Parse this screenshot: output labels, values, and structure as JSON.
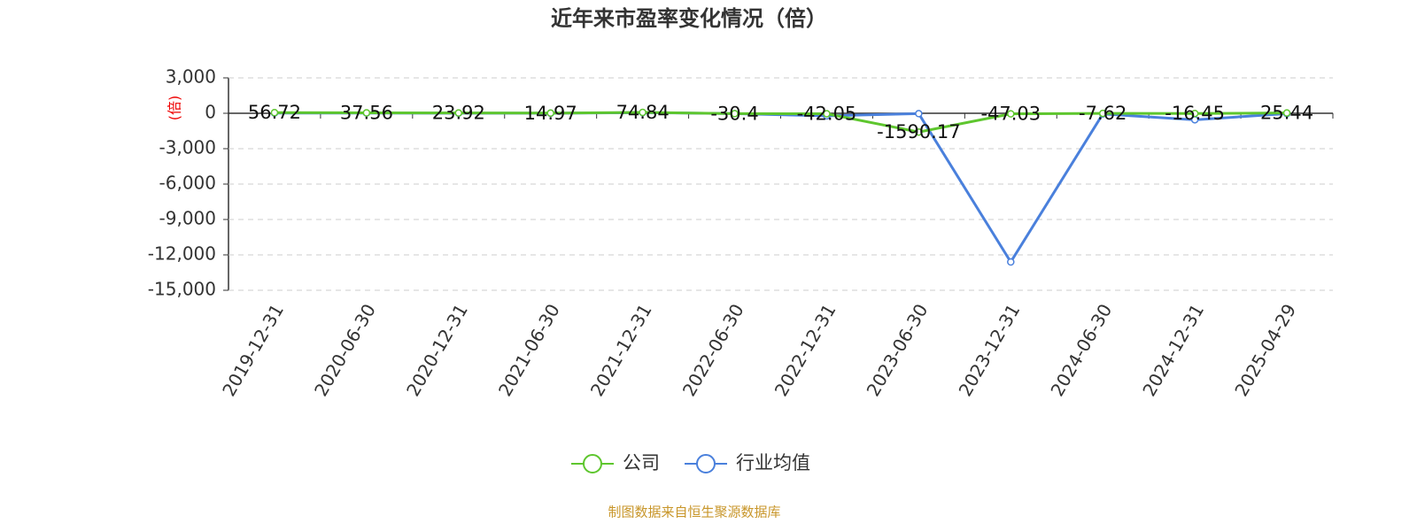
{
  "chart_data": {
    "type": "line",
    "title": "近年来市盈率变化情况（倍）",
    "y_label": "(倍)",
    "source": "制图数据来自恒生聚源数据库",
    "categories": [
      "2019-12-31",
      "2020-06-30",
      "2020-12-31",
      "2021-06-30",
      "2021-12-31",
      "2022-06-30",
      "2022-12-31",
      "2023-06-30",
      "2023-12-31",
      "2024-06-30",
      "2024-12-31",
      "2025-04-29"
    ],
    "series": [
      {
        "name": "公司",
        "color": "#5ec62e",
        "values": [
          56.72,
          37.56,
          23.92,
          14.97,
          74.84,
          -30.4,
          -42.05,
          -1590.17,
          -47.03,
          -7.62,
          -16.45,
          25.44
        ]
      },
      {
        "name": "行业均值",
        "color": "#4a80dc",
        "values": [
          20,
          15,
          10,
          5,
          60,
          -30,
          -220,
          -30,
          -12600,
          -60,
          -550,
          -30
        ]
      }
    ],
    "ylim": [
      -15000,
      3000
    ],
    "yticks": [
      {
        "value": 3000,
        "label": "3,000"
      },
      0,
      {
        "value": -3000,
        "label": "-3,000"
      },
      {
        "value": -6000,
        "label": "-6,000"
      },
      {
        "value": -9000,
        "label": "-9,000"
      },
      {
        "value": -12000,
        "label": "-12,000"
      },
      {
        "value": -15000,
        "label": "-15,000"
      }
    ],
    "grid": true,
    "legend": "bottom"
  }
}
